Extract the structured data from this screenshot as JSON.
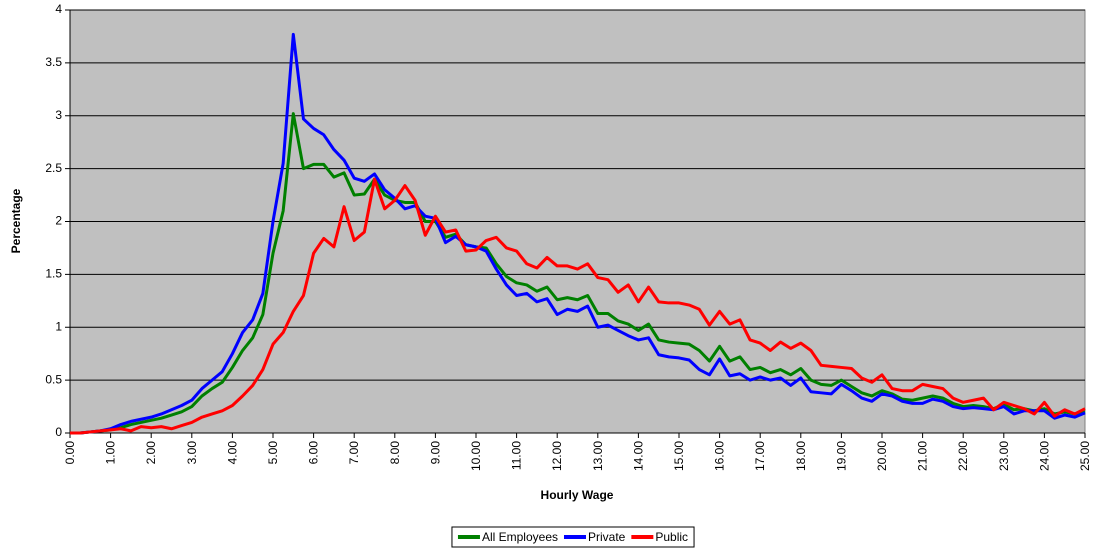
{
  "chart_data": {
    "type": "line",
    "x_label": "Hourly Wage",
    "y_label": "Percentage",
    "x": [
      0,
      0.25,
      0.5,
      0.75,
      1,
      1.25,
      1.5,
      1.75,
      2,
      2.25,
      2.5,
      2.75,
      3,
      3.25,
      3.5,
      3.75,
      4,
      4.25,
      4.5,
      4.75,
      5,
      5.25,
      5.5,
      5.75,
      6,
      6.25,
      6.5,
      6.75,
      7,
      7.25,
      7.5,
      7.75,
      8,
      8.25,
      8.5,
      8.75,
      9,
      9.25,
      9.5,
      9.75,
      10,
      10.25,
      10.5,
      10.75,
      11,
      11.25,
      11.5,
      11.75,
      12,
      12.25,
      12.5,
      12.75,
      13,
      13.25,
      13.5,
      13.75,
      14,
      14.25,
      14.5,
      14.75,
      15,
      15.25,
      15.5,
      15.75,
      16,
      16.25,
      16.5,
      16.75,
      17,
      17.25,
      17.5,
      17.75,
      18,
      18.25,
      18.5,
      18.75,
      19,
      19.25,
      19.5,
      19.75,
      20,
      20.25,
      20.5,
      20.75,
      21,
      21.25,
      21.5,
      21.75,
      22,
      22.25,
      22.5,
      22.75,
      23,
      23.25,
      23.5,
      23.75,
      24,
      24.25,
      24.5,
      24.75,
      25
    ],
    "series": [
      {
        "name": "All Employees",
        "color": "#008000",
        "values": [
          0,
          0,
          0.01,
          0.02,
          0.03,
          0.05,
          0.08,
          0.1,
          0.12,
          0.14,
          0.17,
          0.2,
          0.25,
          0.35,
          0.42,
          0.48,
          0.62,
          0.78,
          0.9,
          1.12,
          1.7,
          2.1,
          3.02,
          2.5,
          2.54,
          2.54,
          2.42,
          2.46,
          2.25,
          2.26,
          2.4,
          2.25,
          2.2,
          2.18,
          2.18,
          2.0,
          2.0,
          1.85,
          1.88,
          1.78,
          1.76,
          1.75,
          1.6,
          1.48,
          1.42,
          1.4,
          1.34,
          1.38,
          1.26,
          1.28,
          1.26,
          1.3,
          1.13,
          1.13,
          1.06,
          1.03,
          0.97,
          1.03,
          0.88,
          0.86,
          0.85,
          0.84,
          0.78,
          0.68,
          0.82,
          0.68,
          0.72,
          0.6,
          0.62,
          0.57,
          0.6,
          0.55,
          0.61,
          0.5,
          0.46,
          0.45,
          0.5,
          0.44,
          0.38,
          0.35,
          0.4,
          0.37,
          0.32,
          0.31,
          0.33,
          0.35,
          0.33,
          0.28,
          0.25,
          0.26,
          0.25,
          0.23,
          0.27,
          0.22,
          0.23,
          0.21,
          0.23,
          0.18,
          0.2,
          0.18,
          0.2
        ]
      },
      {
        "name": "Private",
        "color": "#0000ff",
        "values": [
          0,
          0,
          0.01,
          0.02,
          0.04,
          0.08,
          0.11,
          0.13,
          0.15,
          0.18,
          0.22,
          0.26,
          0.31,
          0.42,
          0.5,
          0.58,
          0.75,
          0.95,
          1.07,
          1.32,
          2.0,
          2.55,
          3.77,
          2.97,
          2.88,
          2.82,
          2.68,
          2.58,
          2.41,
          2.38,
          2.45,
          2.3,
          2.22,
          2.12,
          2.15,
          2.05,
          2.03,
          1.8,
          1.86,
          1.78,
          1.76,
          1.72,
          1.55,
          1.4,
          1.3,
          1.32,
          1.24,
          1.27,
          1.12,
          1.17,
          1.15,
          1.2,
          1.0,
          1.02,
          0.97,
          0.92,
          0.88,
          0.9,
          0.74,
          0.72,
          0.71,
          0.69,
          0.6,
          0.55,
          0.7,
          0.54,
          0.56,
          0.5,
          0.53,
          0.5,
          0.52,
          0.45,
          0.52,
          0.39,
          0.38,
          0.37,
          0.46,
          0.4,
          0.33,
          0.3,
          0.37,
          0.35,
          0.3,
          0.28,
          0.28,
          0.32,
          0.3,
          0.25,
          0.23,
          0.24,
          0.23,
          0.22,
          0.25,
          0.18,
          0.21,
          0.21,
          0.21,
          0.14,
          0.17,
          0.15,
          0.19
        ]
      },
      {
        "name": "Public",
        "color": "#ff0000",
        "values": [
          0,
          0,
          0.01,
          0.02,
          0.03,
          0.04,
          0.02,
          0.06,
          0.05,
          0.06,
          0.04,
          0.07,
          0.1,
          0.15,
          0.18,
          0.21,
          0.26,
          0.35,
          0.45,
          0.6,
          0.84,
          0.95,
          1.15,
          1.3,
          1.7,
          1.84,
          1.76,
          2.14,
          1.82,
          1.9,
          2.4,
          2.12,
          2.2,
          2.34,
          2.2,
          1.87,
          2.05,
          1.9,
          1.92,
          1.72,
          1.73,
          1.82,
          1.85,
          1.75,
          1.72,
          1.6,
          1.56,
          1.66,
          1.58,
          1.58,
          1.55,
          1.6,
          1.47,
          1.45,
          1.33,
          1.4,
          1.24,
          1.38,
          1.24,
          1.23,
          1.23,
          1.21,
          1.17,
          1.02,
          1.15,
          1.03,
          1.07,
          0.88,
          0.85,
          0.78,
          0.86,
          0.8,
          0.85,
          0.78,
          0.64,
          0.63,
          0.62,
          0.61,
          0.52,
          0.48,
          0.55,
          0.42,
          0.4,
          0.4,
          0.46,
          0.44,
          0.42,
          0.33,
          0.29,
          0.31,
          0.33,
          0.22,
          0.29,
          0.26,
          0.23,
          0.18,
          0.29,
          0.16,
          0.22,
          0.18,
          0.23
        ]
      }
    ],
    "xlim": [
      0,
      25
    ],
    "xticks": [
      {
        "value": 0,
        "label": "0.00"
      },
      {
        "value": 1,
        "label": "1.00"
      },
      {
        "value": 2,
        "label": "2.00"
      },
      {
        "value": 3,
        "label": "3.00"
      },
      {
        "value": 4,
        "label": "4.00"
      },
      {
        "value": 5,
        "label": "5.00"
      },
      {
        "value": 6,
        "label": "6.00"
      },
      {
        "value": 7,
        "label": "7.00"
      },
      {
        "value": 8,
        "label": "8.00"
      },
      {
        "value": 9,
        "label": "9.00"
      },
      {
        "value": 10,
        "label": "10.00"
      },
      {
        "value": 11,
        "label": "11.00"
      },
      {
        "value": 12,
        "label": "12.00"
      },
      {
        "value": 13,
        "label": "13.00"
      },
      {
        "value": 14,
        "label": "14.00"
      },
      {
        "value": 15,
        "label": "15.00"
      },
      {
        "value": 16,
        "label": "16.00"
      },
      {
        "value": 17,
        "label": "17.00"
      },
      {
        "value": 18,
        "label": "18.00"
      },
      {
        "value": 19,
        "label": "19.00"
      },
      {
        "value": 20,
        "label": "20.00"
      },
      {
        "value": 21,
        "label": "21.00"
      },
      {
        "value": 22,
        "label": "22.00"
      },
      {
        "value": 23,
        "label": "23.00"
      },
      {
        "value": 24,
        "label": "24.00"
      },
      {
        "value": 25,
        "label": "25.00"
      }
    ],
    "ylim": [
      0,
      4
    ],
    "yticks": [
      0,
      0.5,
      1,
      1.5,
      2,
      2.5,
      3,
      3.5,
      4
    ],
    "grid": true,
    "legend": "bottom"
  }
}
